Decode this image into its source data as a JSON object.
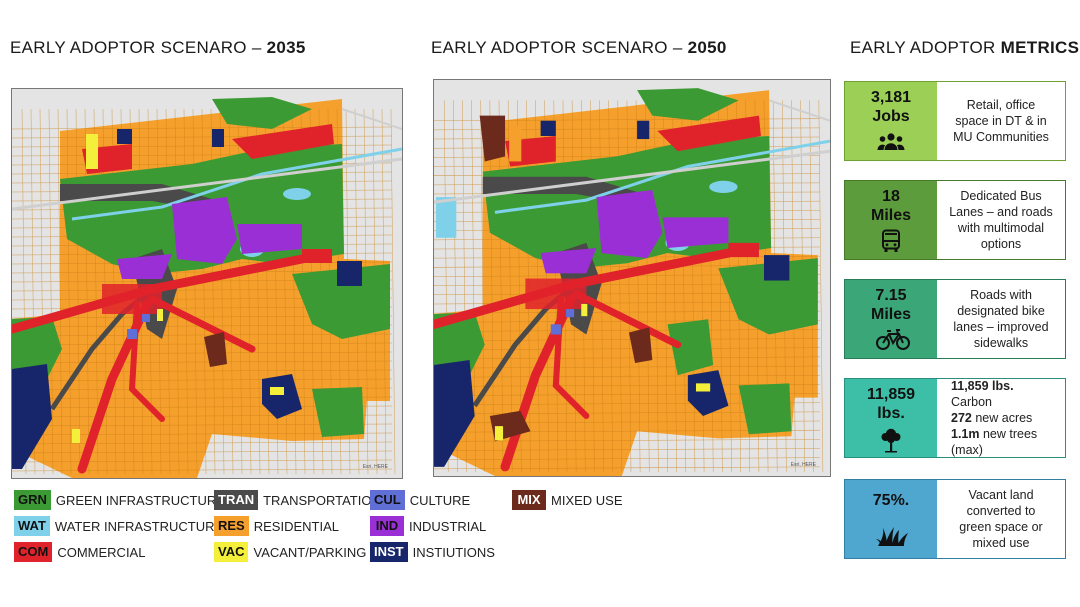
{
  "titles": {
    "scenario_2035_prefix": "EARLY ADOPTOR SCENARO – ",
    "scenario_2035_year": "2035",
    "scenario_2050_prefix": "EARLY ADOPTOR SCENARO – ",
    "scenario_2050_year": "2050",
    "metrics_prefix": "EARLY ADOPTOR ",
    "metrics_bold": "METRICS"
  },
  "maps": {
    "credit": "Esri, HERE"
  },
  "legend": [
    {
      "code": "GRN",
      "label": "GREEN INFRASTRUCTURE",
      "bg": "#3c9a34",
      "fg": "#111111"
    },
    {
      "code": "WAT",
      "label": "WATER INFRASTRUCTURE",
      "bg": "#7fd1ea",
      "fg": "#111111"
    },
    {
      "code": "COM",
      "label": "COMMERCIAL",
      "bg": "#e0222b",
      "fg": "#111111"
    },
    {
      "code": "TRAN",
      "label": "TRANSPORTATION",
      "bg": "#4a4a4a",
      "fg": "#ffffff"
    },
    {
      "code": "RES",
      "label": "RESIDENTIAL",
      "bg": "#f5a02c",
      "fg": "#111111"
    },
    {
      "code": "VAC",
      "label": "VACANT/PARKING",
      "bg": "#f3ef3a",
      "fg": "#111111"
    },
    {
      "code": "CUL",
      "label": "CULTURE",
      "bg": "#5f6fd6",
      "fg": "#111111"
    },
    {
      "code": "IND",
      "label": "INDUSTRIAL",
      "bg": "#9b2fd6",
      "fg": "#111111"
    },
    {
      "code": "INST",
      "label": "INSTIUTIONS",
      "bg": "#17266a",
      "fg": "#ffffff"
    },
    {
      "code": "MIX",
      "label": "MIXED USE",
      "bg": "#6b2a1c",
      "fg": "#ffffff"
    }
  ],
  "metrics": [
    {
      "value": "3,181",
      "unit": "Jobs",
      "icon": "people-group-icon",
      "bg": "#9bcf55",
      "border": "#6ea334",
      "lines": [
        "Retail, office",
        "space in DT & in",
        "MU Communities"
      ]
    },
    {
      "value": "18",
      "unit": "Miles",
      "icon": "bus-icon",
      "bg": "#5d9c3c",
      "border": "#457a2b",
      "lines": [
        "Dedicated Bus",
        "Lanes – and roads",
        "with multimodal",
        "options"
      ]
    },
    {
      "value": "7.15",
      "unit": "Miles",
      "icon": "bicycle-icon",
      "bg": "#3ba678",
      "border": "#2a7d59",
      "lines": [
        "Roads with",
        "designated bike",
        "lanes – improved",
        "sidewalks"
      ]
    },
    {
      "value": "11,859",
      "unit": "lbs.",
      "icon": "tree-icon",
      "bg": "#3cbfa6",
      "border": "#2b8f7d",
      "rich": [
        {
          "bold": "11,859 lbs.",
          "text": " Carbon"
        },
        {
          "bold": "272",
          "text": " new acres"
        },
        {
          "bold": "1.1m",
          "text": " new trees"
        },
        {
          "bold": "",
          "text": "(max)"
        }
      ]
    },
    {
      "value": "75%.",
      "unit": "",
      "icon": "grass-icon",
      "bg": "#4fa6cf",
      "border": "#347ea3",
      "lines": [
        "Vacant land",
        "converted to",
        "green space or",
        "mixed use"
      ]
    }
  ]
}
